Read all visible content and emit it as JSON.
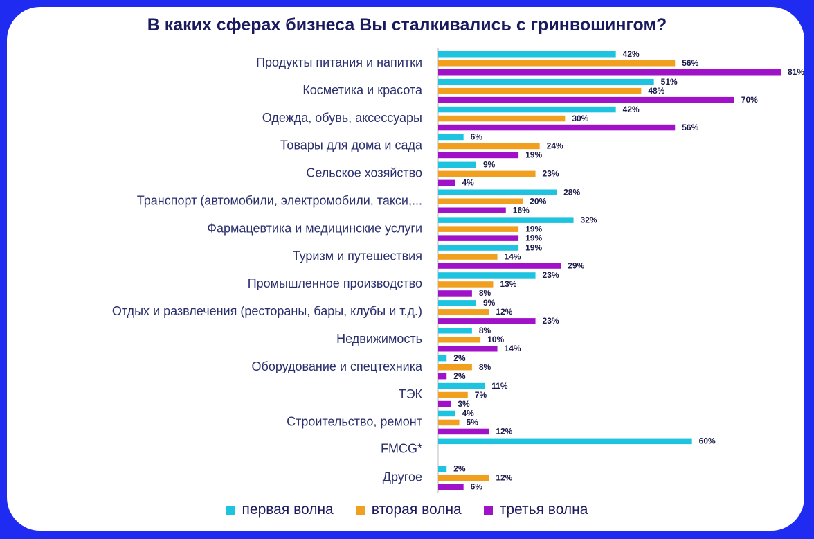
{
  "chart_data": {
    "type": "bar",
    "orientation": "horizontal",
    "title": "В каких сферах бизнеса Вы сталкивались с гринвошингом?",
    "categories": [
      "Продукты питания и напитки",
      "Косметика и красота",
      "Одежда, обувь, аксессуары",
      "Товары для дома и сада",
      "Сельское хозяйство",
      "Транспорт (автомобили, электромобили, такси,...",
      "Фармацевтика и медицинские услуги",
      "Туризм и путешествия",
      "Промышленное производство",
      "Отдых и развлечения (рестораны, бары, клубы и т.д.)",
      "Недвижимость",
      "Оборудование и спецтехника",
      "ТЭК",
      "Строительство, ремонт",
      "FMCG*",
      "Другое"
    ],
    "series": [
      {
        "name": "первая волна",
        "color": "#1ec3e0",
        "values": [
          42,
          51,
          42,
          6,
          9,
          28,
          32,
          19,
          23,
          9,
          8,
          2,
          11,
          4,
          60,
          2
        ]
      },
      {
        "name": "вторая волна",
        "color": "#f0a01e",
        "values": [
          56,
          48,
          30,
          24,
          23,
          20,
          19,
          14,
          13,
          12,
          10,
          8,
          7,
          5,
          null,
          12
        ]
      },
      {
        "name": "третья волна",
        "color": "#a012c8",
        "values": [
          81,
          70,
          56,
          19,
          4,
          16,
          19,
          29,
          8,
          23,
          14,
          2,
          3,
          12,
          null,
          6
        ]
      }
    ],
    "value_suffix": "%",
    "xlim": [
      0,
      81
    ],
    "legend_position": "bottom"
  }
}
